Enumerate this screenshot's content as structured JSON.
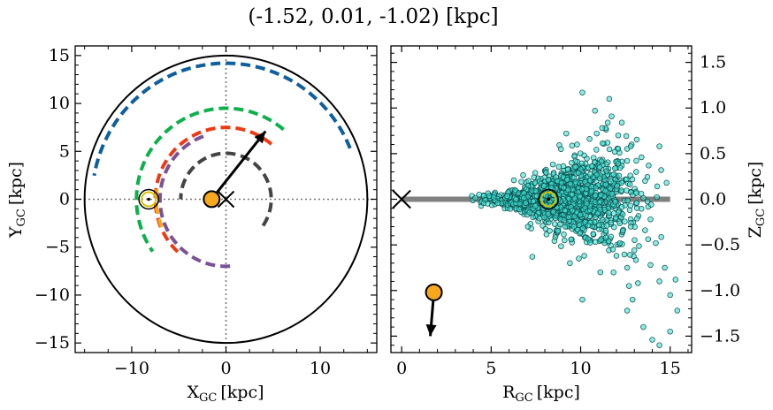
{
  "title": "(-1.52, 0.01, -1.02) [kpc]",
  "chart_data": [
    {
      "type": "scatter",
      "panel": "left",
      "xlabel_main": "X",
      "xlabel_sub": "GC",
      "xlabel_unit": "[kpc]",
      "ylabel_main": "Y",
      "ylabel_sub": "GC",
      "ylabel_unit": "[kpc]",
      "xlim": [
        -16,
        16
      ],
      "ylim": [
        -16,
        16
      ],
      "xticks": [
        -10,
        0,
        10
      ],
      "xtick_labels": [
        "−10",
        "0",
        "10"
      ],
      "yticks": [
        -15,
        -10,
        -5,
        0,
        5,
        10,
        15
      ],
      "ytick_labels": [
        "−15",
        "−10",
        "−5",
        "0",
        "5",
        "10",
        "15"
      ],
      "boundary_circle_radius": 15,
      "sun": {
        "x": -8.2,
        "y": 0.0
      },
      "target": {
        "x": -1.52,
        "y": 0.01
      },
      "galactic_center": {
        "x": 0,
        "y": 0
      },
      "velocity_arrow": {
        "x0": -1.52,
        "y0": 0.01,
        "x1": 4.2,
        "y1": 7.1
      },
      "arms": [
        {
          "color": "#444444",
          "radius": 4.8,
          "theta_start": -35,
          "theta_end": 180
        },
        {
          "color": "#7b5297",
          "radius": 7.0,
          "theta_start": 110,
          "theta_end": 275
        },
        {
          "color": "#ee3a14",
          "radius": 7.5,
          "theta_start": 50,
          "theta_end": 230
        },
        {
          "color": "#0db14b",
          "radius": 9.5,
          "theta_start": 50,
          "theta_end": 215
        },
        {
          "color": "#f8a81d",
          "radius": 7.4,
          "theta_start": 172,
          "theta_end": 203
        },
        {
          "color": "#0d5fa0",
          "radius": 14.2,
          "theta_start": 22,
          "theta_end": 170
        }
      ]
    },
    {
      "type": "scatter",
      "panel": "right",
      "xlabel_main": "R",
      "xlabel_sub": "GC",
      "xlabel_unit": "[kpc]",
      "ylabel_main": "Z",
      "ylabel_sub": "GC",
      "ylabel_unit": "[kpc]",
      "xlim": [
        -0.6,
        16.2
      ],
      "ylim": [
        -1.68,
        1.68
      ],
      "xticks": [
        0,
        5,
        10,
        15
      ],
      "xtick_labels": [
        "0",
        "5",
        "10",
        "15"
      ],
      "yticks": [
        -1.5,
        -1.0,
        -0.5,
        0.0,
        0.5,
        1.0,
        1.5
      ],
      "ytick_labels": [
        "−1.5",
        "−1.0",
        "−0.5",
        "0.0",
        "0.5",
        "1.0",
        "1.5"
      ],
      "disk_line": {
        "x0": 0,
        "x1": 15,
        "z": 0
      },
      "sun": {
        "x": 8.2,
        "y": 0.0
      },
      "target": {
        "x": 1.8,
        "y": -1.02
      },
      "galactic_center": {
        "x": 0,
        "y": 0
      },
      "velocity_arrow": {
        "x0": 1.8,
        "y0": -1.02,
        "x1": 1.6,
        "y1": -1.5
      },
      "points_description_count": 1400,
      "points": [
        [
          10.1,
          1.17
        ],
        [
          11.6,
          1.1
        ],
        [
          10.8,
          0.97
        ],
        [
          12.3,
          0.84
        ],
        [
          9.2,
          0.72
        ],
        [
          11.2,
          0.78
        ],
        [
          10.5,
          0.66
        ],
        [
          12.8,
          0.58
        ],
        [
          13.4,
          0.46
        ],
        [
          14.4,
          0.58
        ],
        [
          13.8,
          0.37
        ],
        [
          14.5,
          0.32
        ],
        [
          12.1,
          0.7
        ],
        [
          9.8,
          0.6
        ],
        [
          11.9,
          0.52
        ],
        [
          10.2,
          0.48
        ],
        [
          11.5,
          0.62
        ],
        [
          12.6,
          0.42
        ],
        [
          13.1,
          0.3
        ],
        [
          8.9,
          0.55
        ],
        [
          10.9,
          0.72
        ],
        [
          9.5,
          0.4
        ],
        [
          14.8,
          0.18
        ],
        [
          13.6,
          0.2
        ],
        [
          12.0,
          -0.62
        ],
        [
          12.6,
          -0.75
        ],
        [
          13.2,
          -0.92
        ],
        [
          14.4,
          -0.9
        ],
        [
          14.7,
          -0.75
        ],
        [
          15.3,
          -0.88
        ],
        [
          13.9,
          -0.72
        ],
        [
          15.0,
          -1.05
        ],
        [
          12.7,
          -0.95
        ],
        [
          12.9,
          -1.1
        ],
        [
          15.4,
          -1.22
        ],
        [
          15.0,
          -1.45
        ],
        [
          14.0,
          -1.54
        ],
        [
          14.4,
          -1.6
        ],
        [
          13.5,
          -1.4
        ],
        [
          12.6,
          -1.22
        ],
        [
          10.1,
          -1.1
        ],
        [
          11.1,
          -0.8
        ],
        [
          10.2,
          -0.62
        ],
        [
          9.9,
          -0.65
        ],
        [
          7.3,
          -0.63
        ],
        [
          9.4,
          -0.7
        ],
        [
          11.8,
          -0.55
        ],
        [
          12.2,
          -0.48
        ],
        [
          13.0,
          -0.56
        ],
        [
          13.6,
          -0.34
        ],
        [
          14.2,
          -0.48
        ],
        [
          11.4,
          -0.42
        ],
        [
          10.7,
          -0.38
        ],
        [
          9.1,
          -0.45
        ],
        [
          12.8,
          -0.3
        ],
        [
          13.9,
          -0.22
        ]
      ]
    }
  ]
}
